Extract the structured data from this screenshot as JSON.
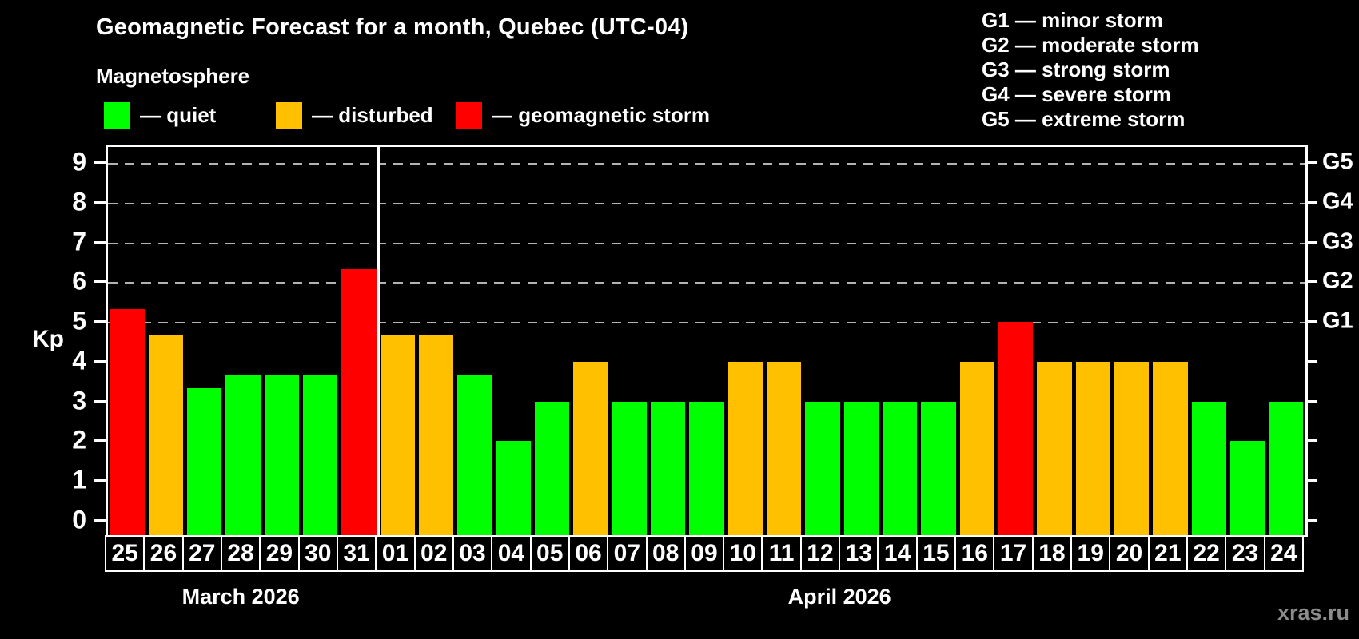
{
  "header": {
    "title": "Geomagnetic Forecast for a month, Quebec (UTC-04)",
    "subtitle": "Magnetosphere"
  },
  "legend": {
    "items": [
      {
        "key": "quiet",
        "label": "— quiet"
      },
      {
        "key": "disturbed",
        "label": "— disturbed"
      },
      {
        "key": "storm",
        "label": "— geomagnetic storm"
      }
    ]
  },
  "storm_scale_legend": {
    "items": [
      "G1 — minor storm",
      "G2 — moderate storm",
      "G3 — strong storm",
      "G4 — severe storm",
      "G5 — extreme storm"
    ]
  },
  "colors": {
    "quiet": "#00ff00",
    "disturbed": "#ffc000",
    "storm": "#ff0000",
    "grid": "#b3b3b3",
    "axis": "#ffffff",
    "background": "#000000",
    "watermark": "#8c8c8c"
  },
  "watermark": "xras.ru",
  "chart_data": {
    "type": "bar",
    "title": "Geomagnetic Forecast for a month, Quebec (UTC-04)",
    "ylabel": "Kp",
    "ylim": [
      0,
      9
    ],
    "yticks": [
      0,
      1,
      2,
      3,
      4,
      5,
      6,
      7,
      8,
      9
    ],
    "gridlines_at": [
      5,
      6,
      7,
      8,
      9
    ],
    "grid": true,
    "right_axis_labels": [
      {
        "kp": 5,
        "label": "G1"
      },
      {
        "kp": 6,
        "label": "G2"
      },
      {
        "kp": 7,
        "label": "G3"
      },
      {
        "kp": 8,
        "label": "G4"
      },
      {
        "kp": 9,
        "label": "G5"
      }
    ],
    "months": [
      {
        "label": "March 2026",
        "days": 7
      },
      {
        "label": "April 2026",
        "days": 24
      }
    ],
    "bars": [
      {
        "day": "25",
        "month": "March 2026",
        "kp": 5.33,
        "status": "storm"
      },
      {
        "day": "26",
        "month": "March 2026",
        "kp": 4.67,
        "status": "disturbed"
      },
      {
        "day": "27",
        "month": "March 2026",
        "kp": 3.33,
        "status": "quiet"
      },
      {
        "day": "28",
        "month": "March 2026",
        "kp": 3.67,
        "status": "quiet"
      },
      {
        "day": "29",
        "month": "March 2026",
        "kp": 3.67,
        "status": "quiet"
      },
      {
        "day": "30",
        "month": "March 2026",
        "kp": 3.67,
        "status": "quiet"
      },
      {
        "day": "31",
        "month": "March 2026",
        "kp": 6.33,
        "status": "storm"
      },
      {
        "day": "01",
        "month": "April 2026",
        "kp": 4.67,
        "status": "disturbed"
      },
      {
        "day": "02",
        "month": "April 2026",
        "kp": 4.67,
        "status": "disturbed"
      },
      {
        "day": "03",
        "month": "April 2026",
        "kp": 3.67,
        "status": "quiet"
      },
      {
        "day": "04",
        "month": "April 2026",
        "kp": 2.0,
        "status": "quiet"
      },
      {
        "day": "05",
        "month": "April 2026",
        "kp": 3.0,
        "status": "quiet"
      },
      {
        "day": "06",
        "month": "April 2026",
        "kp": 4.0,
        "status": "disturbed"
      },
      {
        "day": "07",
        "month": "April 2026",
        "kp": 3.0,
        "status": "quiet"
      },
      {
        "day": "08",
        "month": "April 2026",
        "kp": 3.0,
        "status": "quiet"
      },
      {
        "day": "09",
        "month": "April 2026",
        "kp": 3.0,
        "status": "quiet"
      },
      {
        "day": "10",
        "month": "April 2026",
        "kp": 4.0,
        "status": "disturbed"
      },
      {
        "day": "11",
        "month": "April 2026",
        "kp": 4.0,
        "status": "disturbed"
      },
      {
        "day": "12",
        "month": "April 2026",
        "kp": 3.0,
        "status": "quiet"
      },
      {
        "day": "13",
        "month": "April 2026",
        "kp": 3.0,
        "status": "quiet"
      },
      {
        "day": "14",
        "month": "April 2026",
        "kp": 3.0,
        "status": "quiet"
      },
      {
        "day": "15",
        "month": "April 2026",
        "kp": 3.0,
        "status": "quiet"
      },
      {
        "day": "16",
        "month": "April 2026",
        "kp": 4.0,
        "status": "disturbed"
      },
      {
        "day": "17",
        "month": "April 2026",
        "kp": 5.0,
        "status": "storm"
      },
      {
        "day": "18",
        "month": "April 2026",
        "kp": 4.0,
        "status": "disturbed"
      },
      {
        "day": "19",
        "month": "April 2026",
        "kp": 4.0,
        "status": "disturbed"
      },
      {
        "day": "20",
        "month": "April 2026",
        "kp": 4.0,
        "status": "disturbed"
      },
      {
        "day": "21",
        "month": "April 2026",
        "kp": 4.0,
        "status": "disturbed"
      },
      {
        "day": "22",
        "month": "April 2026",
        "kp": 3.0,
        "status": "quiet"
      },
      {
        "day": "23",
        "month": "April 2026",
        "kp": 2.0,
        "status": "quiet"
      },
      {
        "day": "24",
        "month": "April 2026",
        "kp": 3.0,
        "status": "quiet"
      }
    ]
  }
}
